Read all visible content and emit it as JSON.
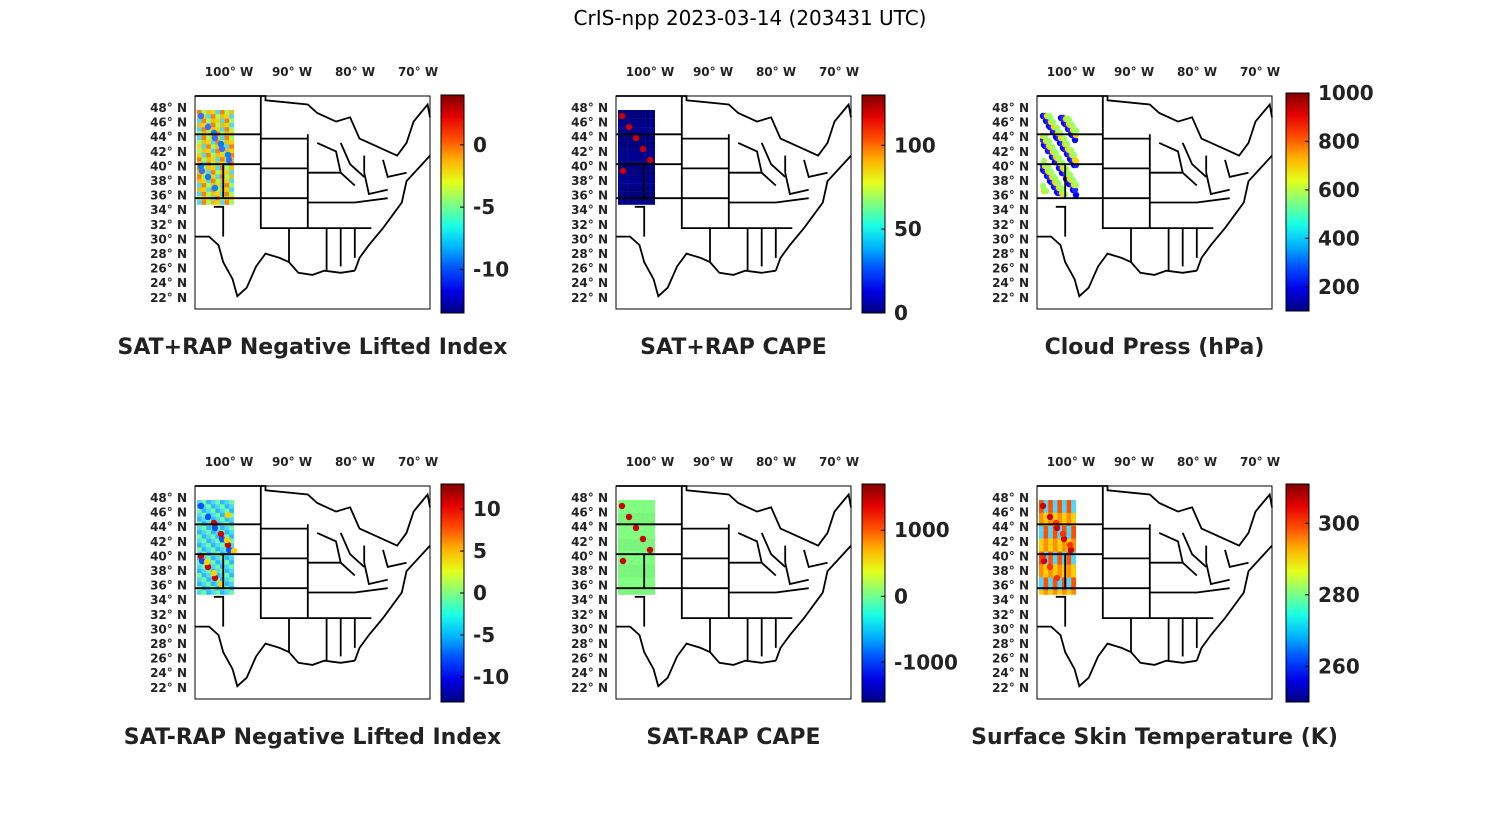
{
  "title": "CrIS-npp 2023-03-14 (203431 UTC)",
  "lon_ticks": [
    "100",
    "90",
    "80",
    "70"
  ],
  "lon_hemisphere": "W",
  "lat_ticks": [
    "48",
    "46",
    "44",
    "42",
    "40",
    "38",
    "36",
    "34",
    "32",
    "30",
    "28",
    "26",
    "24",
    "22"
  ],
  "lat_hemisphere": "N",
  "degree_symbol": "°",
  "panels": [
    {
      "title": "SAT+RAP Negative Lifted Index",
      "colorbar": {
        "min": -13.5,
        "max": 4,
        "ticks": [
          "0",
          "-5",
          "-10"
        ],
        "tick_values": [
          0,
          -5,
          -10
        ]
      },
      "swath_colors": [
        "#ff7f00",
        "#ffd000",
        "#9eff5f",
        "#4fd7ff",
        "#e8c020"
      ],
      "dots": [
        "#3b6cff",
        "#0080ff"
      ]
    },
    {
      "title": "SAT+RAP CAPE",
      "colorbar": {
        "min": 0,
        "max": 130,
        "ticks": [
          "0",
          "50",
          "100"
        ],
        "tick_values": [
          0,
          50,
          100
        ]
      },
      "swath_colors": [
        "#00007f",
        "#00008f"
      ],
      "dots": [
        "#cc0000"
      ]
    },
    {
      "title": "Cloud Press (hPa)",
      "colorbar": {
        "min": 100,
        "max": 1000,
        "ticks": [
          "1000",
          "800",
          "600",
          "400",
          "200"
        ],
        "tick_values": [
          1000,
          800,
          600,
          400,
          200
        ]
      },
      "swath_colors": [],
      "dots": [
        "#0000ff",
        "#1a2bff",
        "#ffd200",
        "#9eff5f"
      ]
    },
    {
      "title": "SAT-RAP Negative Lifted Index",
      "colorbar": {
        "min": -13,
        "max": 13,
        "ticks": [
          "10",
          "5",
          "0",
          "-5",
          "-10"
        ],
        "tick_values": [
          10,
          5,
          0,
          -5,
          -10
        ]
      },
      "swath_colors": [
        "#4fd7ff",
        "#2fb8ff",
        "#70ffa0"
      ],
      "dots": [
        "#0050ff",
        "#cc0000",
        "#ffd000"
      ]
    },
    {
      "title": "SAT-RAP CAPE",
      "colorbar": {
        "min": -1600,
        "max": 1700,
        "ticks": [
          "1000",
          "0",
          "-1000"
        ],
        "tick_values": [
          1000,
          0,
          -1000
        ]
      },
      "swath_colors": [
        "#80ff80",
        "#7cf57c"
      ],
      "dots": [
        "#cc0000"
      ]
    },
    {
      "title": "Surface Skin Temperature (K)",
      "colorbar": {
        "min": 250,
        "max": 311,
        "ticks": [
          "300",
          "280",
          "260"
        ],
        "tick_values": [
          300,
          280,
          260
        ]
      },
      "swath_colors": [
        "#ff5000",
        "#ff9000",
        "#4fd7ff",
        "#ffd000"
      ],
      "dots": [
        "#cc0000",
        "#ff3000"
      ]
    }
  ]
}
